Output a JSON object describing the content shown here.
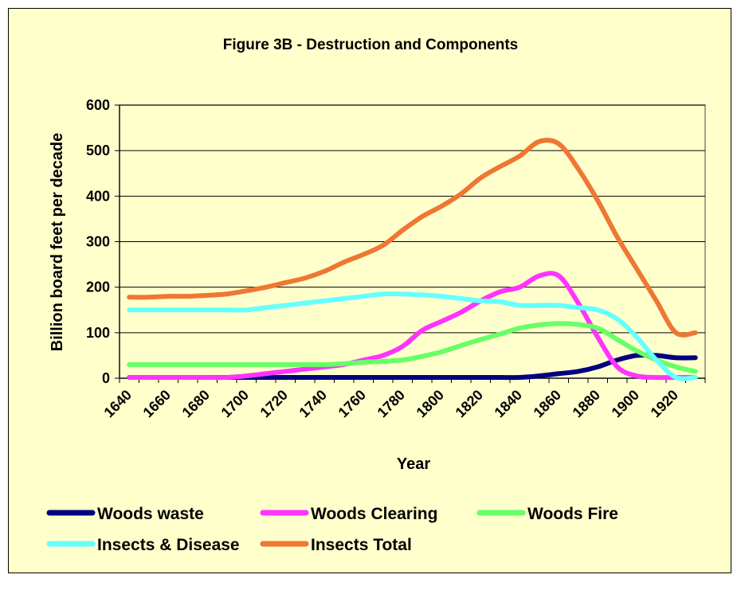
{
  "chart_data": {
    "type": "line",
    "title": "Figure 3B - Destruction and Components",
    "xlabel": "Year",
    "ylabel": "Billion board feet per decade",
    "ylim": [
      0,
      600
    ],
    "yticks": [
      0,
      100,
      200,
      300,
      400,
      500,
      600
    ],
    "xticks": [
      1640,
      1660,
      1680,
      1700,
      1720,
      1740,
      1760,
      1780,
      1800,
      1820,
      1840,
      1860,
      1880,
      1900,
      1920
    ],
    "grid": "horizontal",
    "legend_position": "bottom",
    "x": [
      1645,
      1655,
      1665,
      1675,
      1685,
      1695,
      1705,
      1715,
      1725,
      1735,
      1745,
      1755,
      1765,
      1775,
      1785,
      1795,
      1805,
      1815,
      1825,
      1835,
      1845,
      1855,
      1865,
      1875,
      1885,
      1895,
      1905,
      1915,
      1925,
      1935
    ],
    "series": [
      {
        "name": "Woods waste",
        "color": "#000080",
        "values": [
          0,
          0,
          0,
          0,
          0,
          0,
          0,
          0,
          0,
          0,
          0,
          0,
          0,
          0,
          0,
          0,
          0,
          0,
          0,
          0,
          0,
          5,
          10,
          15,
          25,
          40,
          50,
          50,
          45,
          45
        ]
      },
      {
        "name": "Woods Clearing",
        "color": "#ff33ff",
        "values": [
          0,
          0,
          0,
          0,
          0,
          0,
          5,
          10,
          15,
          20,
          25,
          30,
          40,
          50,
          70,
          105,
          125,
          145,
          170,
          190,
          200,
          225,
          225,
          165,
          90,
          25,
          5,
          0,
          0,
          0
        ]
      },
      {
        "name": "Woods Fire",
        "color": "#66ff66",
        "values": [
          30,
          30,
          30,
          30,
          30,
          30,
          30,
          30,
          30,
          30,
          30,
          32,
          35,
          37,
          40,
          48,
          58,
          72,
          85,
          97,
          110,
          117,
          120,
          118,
          110,
          85,
          60,
          40,
          25,
          15
        ]
      },
      {
        "name": "Insects & Disease",
        "color": "#66ffff",
        "values": [
          150,
          150,
          150,
          150,
          150,
          150,
          150,
          155,
          160,
          165,
          170,
          175,
          180,
          185,
          185,
          183,
          180,
          175,
          170,
          168,
          160,
          160,
          160,
          155,
          150,
          130,
          90,
          40,
          0,
          0
        ]
      },
      {
        "name": "Insects Total",
        "color": "#ee7733",
        "values": [
          178,
          178,
          180,
          180,
          182,
          185,
          192,
          200,
          210,
          220,
          235,
          255,
          272,
          292,
          325,
          355,
          378,
          405,
          440,
          465,
          488,
          520,
          515,
          460,
          390,
          310,
          240,
          170,
          100,
          100
        ]
      }
    ]
  }
}
